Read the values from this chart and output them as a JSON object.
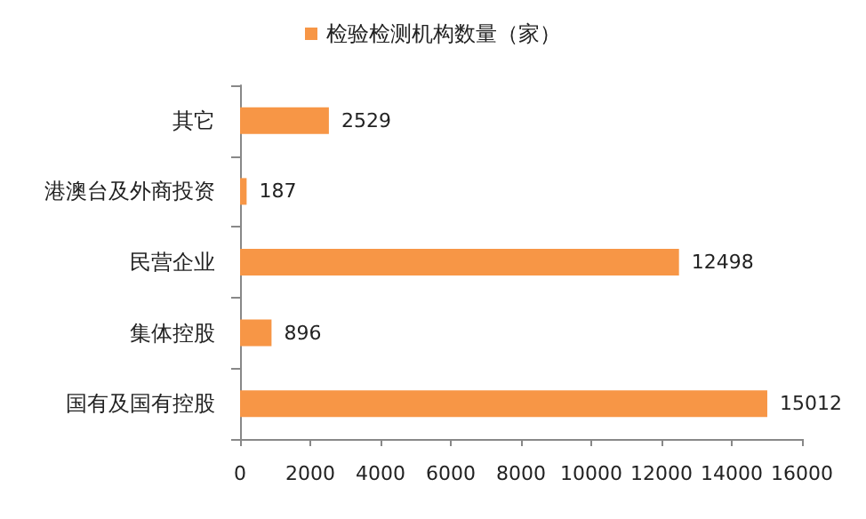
{
  "chart_data": {
    "type": "bar",
    "orientation": "horizontal",
    "categories": [
      "其它",
      "港澳台及外商投资",
      "民营企业",
      "集体控股",
      "国有及国有控股"
    ],
    "series": [
      {
        "name": "检验检测机构数量（家）",
        "color": "#f79646",
        "values": [
          2529,
          187,
          12498,
          896,
          15012
        ]
      }
    ],
    "xlim": [
      0,
      16000
    ],
    "xticks": [
      0,
      2000,
      4000,
      6000,
      8000,
      10000,
      12000,
      14000,
      16000
    ],
    "data_labels": true,
    "grid": false,
    "legend": "top"
  }
}
